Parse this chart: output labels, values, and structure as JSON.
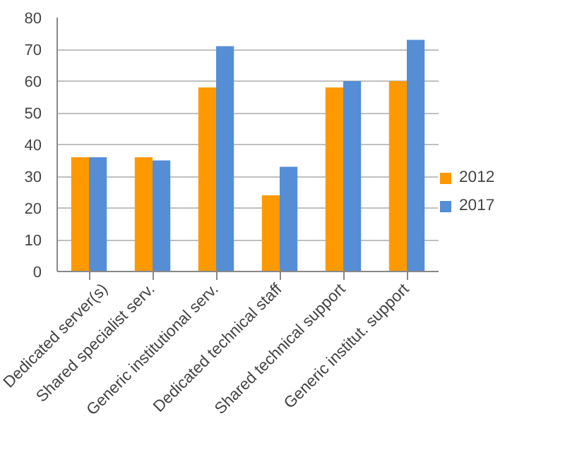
{
  "chart_data": {
    "type": "bar",
    "categories": [
      "Dedicated server(s)",
      "Shared specialist serv.",
      "Generic institutional serv.",
      "Dedicated technical staff",
      "Shared technical support",
      "Generic institut. support"
    ],
    "series": [
      {
        "name": "2012",
        "color": "#ff9900",
        "values": [
          36,
          36,
          58,
          24,
          58,
          60
        ]
      },
      {
        "name": "2017",
        "color": "#558ed5",
        "values": [
          36,
          35,
          71,
          33,
          60,
          73
        ]
      }
    ],
    "ylim": [
      0,
      80
    ],
    "yticks": [
      0,
      10,
      20,
      30,
      40,
      50,
      60,
      70,
      80
    ],
    "grid": "y",
    "legend": "right"
  }
}
